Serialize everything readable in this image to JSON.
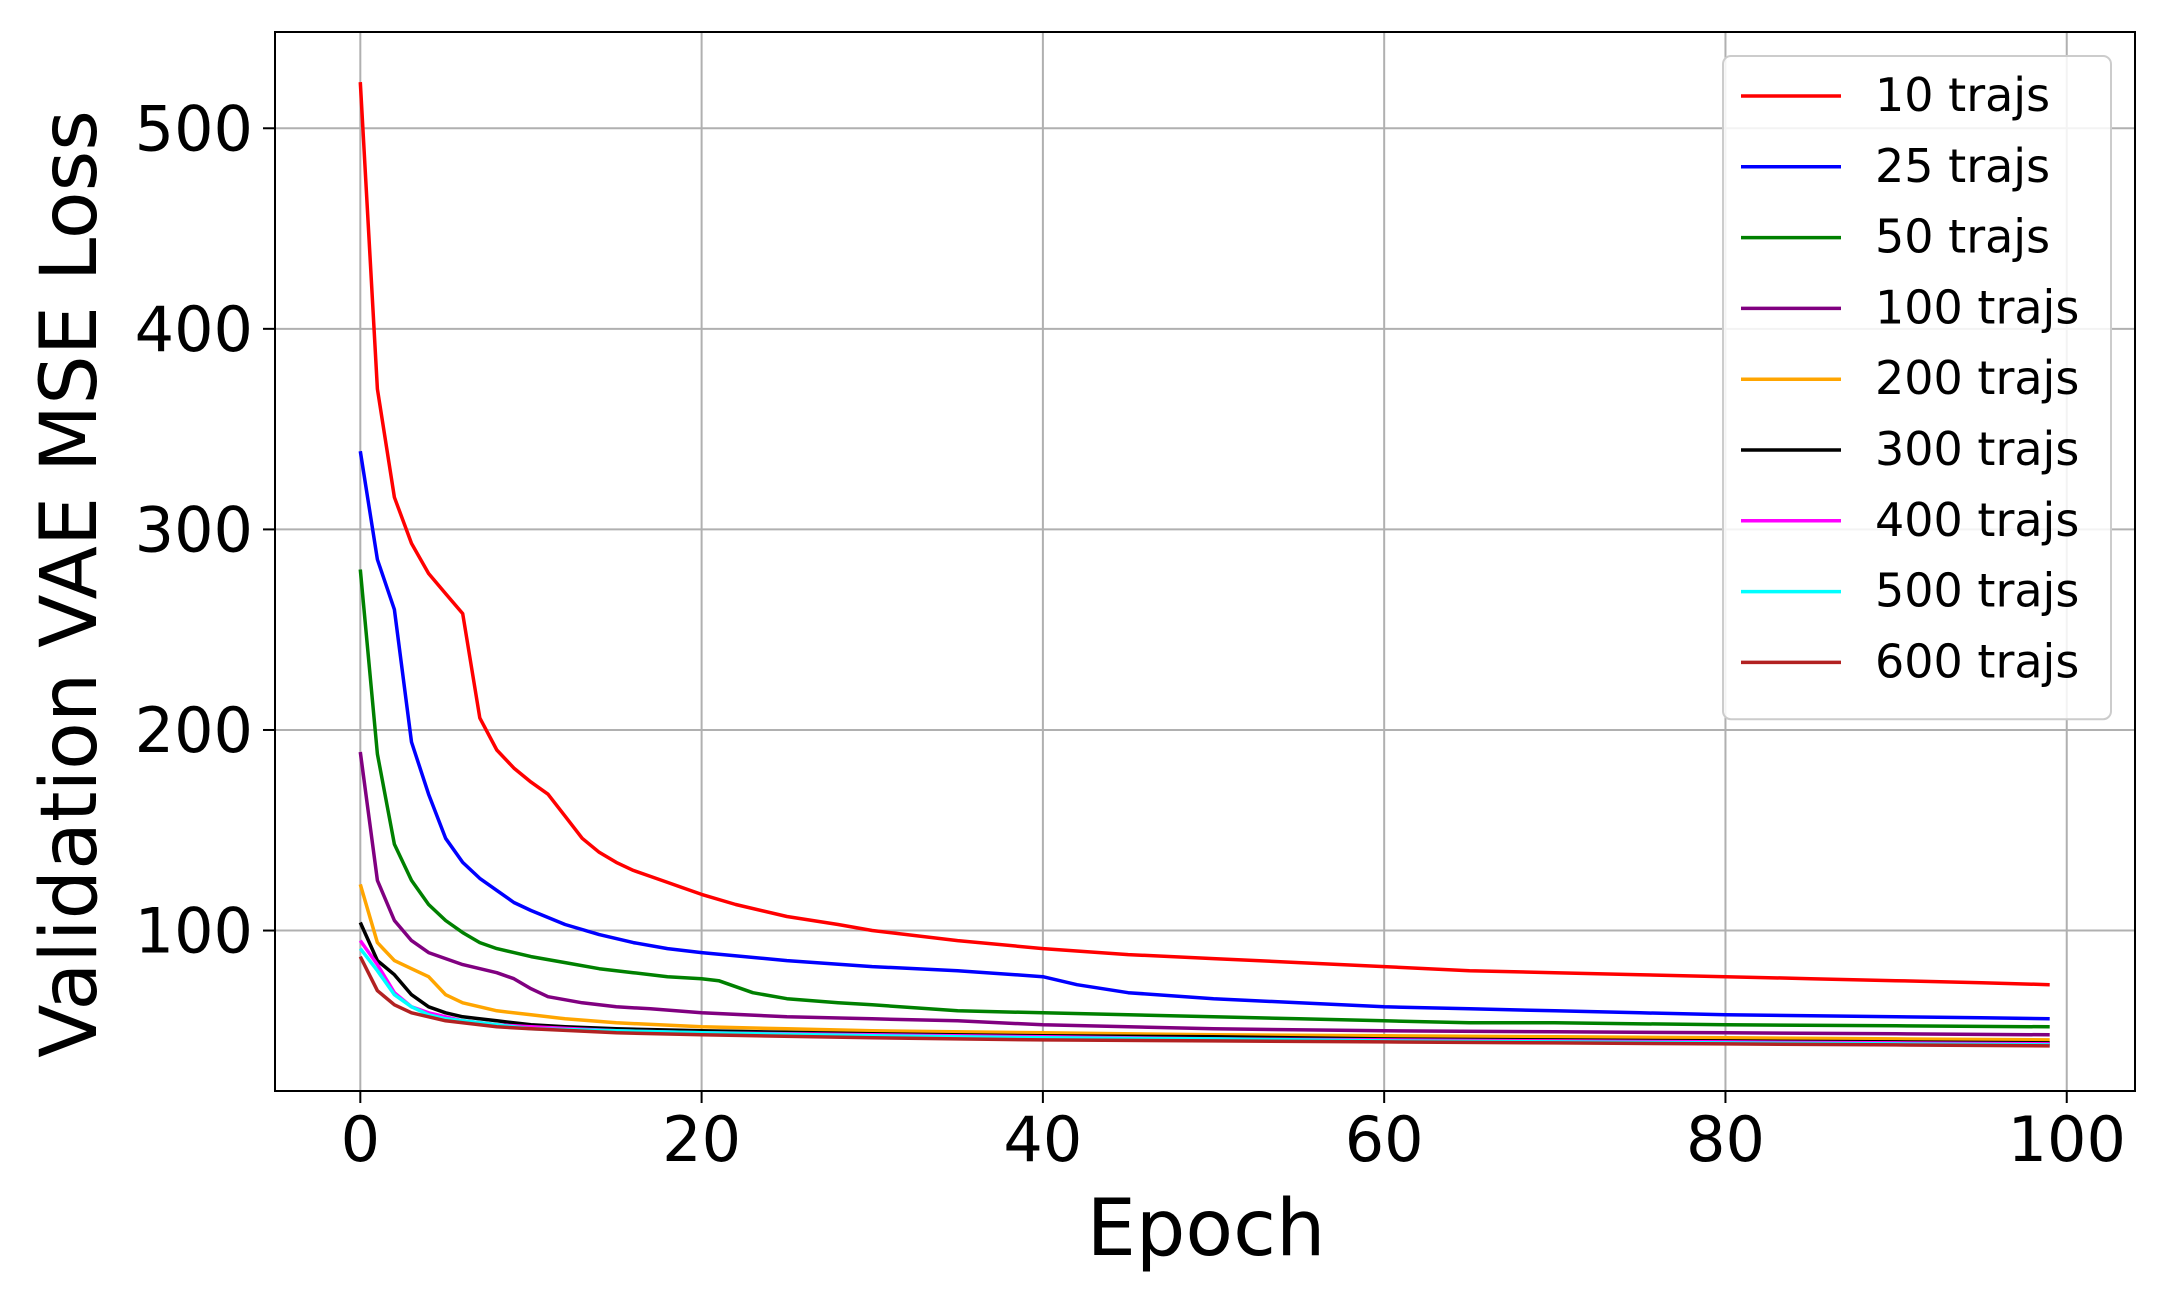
{
  "chart_data": {
    "type": "line",
    "title": "",
    "xlabel": "Epoch",
    "ylabel": "Validation VAE MSE Loss",
    "xlim": [
      -5,
      104
    ],
    "ylim": [
      20,
      548
    ],
    "xticks": [
      0,
      20,
      40,
      60,
      80,
      100
    ],
    "yticks": [
      100,
      200,
      300,
      400,
      500
    ],
    "grid": true,
    "legend_position": "top-right",
    "series": [
      {
        "name": "10 trajs",
        "color": "#ff0000",
        "points": [
          [
            0,
            523
          ],
          [
            1,
            370
          ],
          [
            2,
            316
          ],
          [
            3,
            293
          ],
          [
            4,
            278
          ],
          [
            5,
            268
          ],
          [
            6,
            258
          ],
          [
            7,
            206
          ],
          [
            8,
            190
          ],
          [
            9,
            181
          ],
          [
            10,
            174
          ],
          [
            11,
            168
          ],
          [
            12,
            157
          ],
          [
            13,
            146
          ],
          [
            14,
            139
          ],
          [
            15,
            134
          ],
          [
            16,
            130
          ],
          [
            17,
            127
          ],
          [
            18,
            124
          ],
          [
            19,
            121
          ],
          [
            20,
            118
          ],
          [
            22,
            113
          ],
          [
            25,
            107
          ],
          [
            28,
            103
          ],
          [
            30,
            100
          ],
          [
            35,
            95
          ],
          [
            40,
            91
          ],
          [
            45,
            88
          ],
          [
            50,
            86
          ],
          [
            55,
            84
          ],
          [
            60,
            82
          ],
          [
            65,
            80
          ],
          [
            70,
            79
          ],
          [
            75,
            78
          ],
          [
            80,
            77
          ],
          [
            85,
            76
          ],
          [
            90,
            75
          ],
          [
            95,
            74
          ],
          [
            99,
            73
          ]
        ]
      },
      {
        "name": "25 trajs",
        "color": "#0000ff",
        "points": [
          [
            0,
            339
          ],
          [
            1,
            285
          ],
          [
            2,
            260
          ],
          [
            3,
            194
          ],
          [
            4,
            168
          ],
          [
            5,
            146
          ],
          [
            6,
            134
          ],
          [
            7,
            126
          ],
          [
            8,
            120
          ],
          [
            9,
            114
          ],
          [
            10,
            110
          ],
          [
            12,
            103
          ],
          [
            14,
            98
          ],
          [
            16,
            94
          ],
          [
            18,
            91
          ],
          [
            20,
            89
          ],
          [
            25,
            85
          ],
          [
            30,
            82
          ],
          [
            35,
            80
          ],
          [
            40,
            77
          ],
          [
            42,
            73
          ],
          [
            45,
            69
          ],
          [
            50,
            66
          ],
          [
            55,
            64
          ],
          [
            60,
            62
          ],
          [
            65,
            61
          ],
          [
            70,
            60
          ],
          [
            75,
            59
          ],
          [
            80,
            58
          ],
          [
            85,
            57.5
          ],
          [
            90,
            57
          ],
          [
            95,
            56.5
          ],
          [
            99,
            56
          ]
        ]
      },
      {
        "name": "50 trajs",
        "color": "#008000",
        "points": [
          [
            0,
            280
          ],
          [
            1,
            188
          ],
          [
            2,
            143
          ],
          [
            3,
            125
          ],
          [
            4,
            113
          ],
          [
            5,
            105
          ],
          [
            6,
            99
          ],
          [
            7,
            94
          ],
          [
            8,
            91
          ],
          [
            9,
            89
          ],
          [
            10,
            87
          ],
          [
            12,
            84
          ],
          [
            14,
            81
          ],
          [
            16,
            79
          ],
          [
            18,
            77
          ],
          [
            20,
            76
          ],
          [
            21,
            75
          ],
          [
            23,
            69
          ],
          [
            25,
            66
          ],
          [
            28,
            64
          ],
          [
            30,
            63
          ],
          [
            35,
            60
          ],
          [
            40,
            59
          ],
          [
            45,
            58
          ],
          [
            50,
            57
          ],
          [
            55,
            56
          ],
          [
            60,
            55
          ],
          [
            65,
            54
          ],
          [
            70,
            54
          ],
          [
            80,
            53
          ],
          [
            90,
            52.5
          ],
          [
            99,
            52
          ]
        ]
      },
      {
        "name": "100 trajs",
        "color": "#800080",
        "points": [
          [
            0,
            189
          ],
          [
            1,
            125
          ],
          [
            2,
            105
          ],
          [
            3,
            95
          ],
          [
            4,
            89
          ],
          [
            5,
            86
          ],
          [
            6,
            83
          ],
          [
            8,
            79
          ],
          [
            9,
            76
          ],
          [
            10,
            71
          ],
          [
            11,
            67
          ],
          [
            13,
            64
          ],
          [
            15,
            62
          ],
          [
            17,
            61
          ],
          [
            20,
            59
          ],
          [
            25,
            57
          ],
          [
            30,
            56
          ],
          [
            35,
            55
          ],
          [
            40,
            53
          ],
          [
            45,
            52
          ],
          [
            50,
            51
          ],
          [
            60,
            50
          ],
          [
            70,
            49.5
          ],
          [
            80,
            49
          ],
          [
            90,
            48.5
          ],
          [
            99,
            48
          ]
        ]
      },
      {
        "name": "200 trajs",
        "color": "#ffa500",
        "points": [
          [
            0,
            123
          ],
          [
            1,
            94
          ],
          [
            2,
            85
          ],
          [
            3,
            81
          ],
          [
            4,
            77
          ],
          [
            5,
            68
          ],
          [
            6,
            64
          ],
          [
            7,
            62
          ],
          [
            8,
            60
          ],
          [
            10,
            58
          ],
          [
            12,
            56
          ],
          [
            15,
            54
          ],
          [
            20,
            52
          ],
          [
            25,
            51
          ],
          [
            30,
            50
          ],
          [
            40,
            49
          ],
          [
            50,
            48
          ],
          [
            60,
            47.5
          ],
          [
            70,
            47
          ],
          [
            80,
            46.5
          ],
          [
            90,
            46
          ],
          [
            99,
            45.5
          ]
        ]
      },
      {
        "name": "300 trajs",
        "color": "#000000",
        "points": [
          [
            0,
            104
          ],
          [
            1,
            85
          ],
          [
            2,
            78
          ],
          [
            3,
            68
          ],
          [
            4,
            62
          ],
          [
            5,
            59
          ],
          [
            6,
            57
          ],
          [
            8,
            55
          ],
          [
            10,
            53
          ],
          [
            12,
            52
          ],
          [
            15,
            51
          ],
          [
            20,
            50
          ],
          [
            30,
            48.5
          ],
          [
            40,
            47.5
          ],
          [
            50,
            47
          ],
          [
            60,
            46
          ],
          [
            70,
            45.5
          ],
          [
            80,
            45
          ],
          [
            90,
            44.5
          ],
          [
            99,
            44
          ]
        ]
      },
      {
        "name": "400 trajs",
        "color": "#ff00ff",
        "points": [
          [
            0,
            95
          ],
          [
            1,
            83
          ],
          [
            2,
            69
          ],
          [
            3,
            62
          ],
          [
            4,
            59
          ],
          [
            5,
            57
          ],
          [
            6,
            55
          ],
          [
            8,
            53
          ],
          [
            10,
            52
          ],
          [
            15,
            50
          ],
          [
            20,
            49
          ],
          [
            30,
            48
          ],
          [
            40,
            47
          ],
          [
            50,
            46
          ],
          [
            60,
            45.5
          ],
          [
            70,
            45
          ],
          [
            80,
            44.5
          ],
          [
            90,
            44
          ],
          [
            99,
            43.5
          ]
        ]
      },
      {
        "name": "500 trajs",
        "color": "#00ffff",
        "points": [
          [
            0,
            91
          ],
          [
            1,
            80
          ],
          [
            2,
            68
          ],
          [
            3,
            62
          ],
          [
            4,
            58
          ],
          [
            5,
            56
          ],
          [
            6,
            55
          ],
          [
            8,
            53
          ],
          [
            10,
            51
          ],
          [
            15,
            50
          ],
          [
            20,
            49
          ],
          [
            30,
            47.5
          ],
          [
            40,
            46.5
          ],
          [
            50,
            46
          ],
          [
            60,
            45
          ],
          [
            70,
            44.5
          ],
          [
            80,
            44
          ],
          [
            90,
            43.5
          ],
          [
            99,
            43
          ]
        ]
      },
      {
        "name": "600 trajs",
        "color": "#b22222",
        "points": [
          [
            0,
            87
          ],
          [
            1,
            70
          ],
          [
            2,
            63
          ],
          [
            3,
            59
          ],
          [
            4,
            57
          ],
          [
            5,
            55
          ],
          [
            6,
            54
          ],
          [
            8,
            52
          ],
          [
            10,
            51
          ],
          [
            15,
            49
          ],
          [
            20,
            48
          ],
          [
            30,
            46.5
          ],
          [
            40,
            45.5
          ],
          [
            50,
            45
          ],
          [
            60,
            44.5
          ],
          [
            70,
            44
          ],
          [
            80,
            43.5
          ],
          [
            90,
            43
          ],
          [
            99,
            42.5
          ]
        ]
      }
    ]
  }
}
